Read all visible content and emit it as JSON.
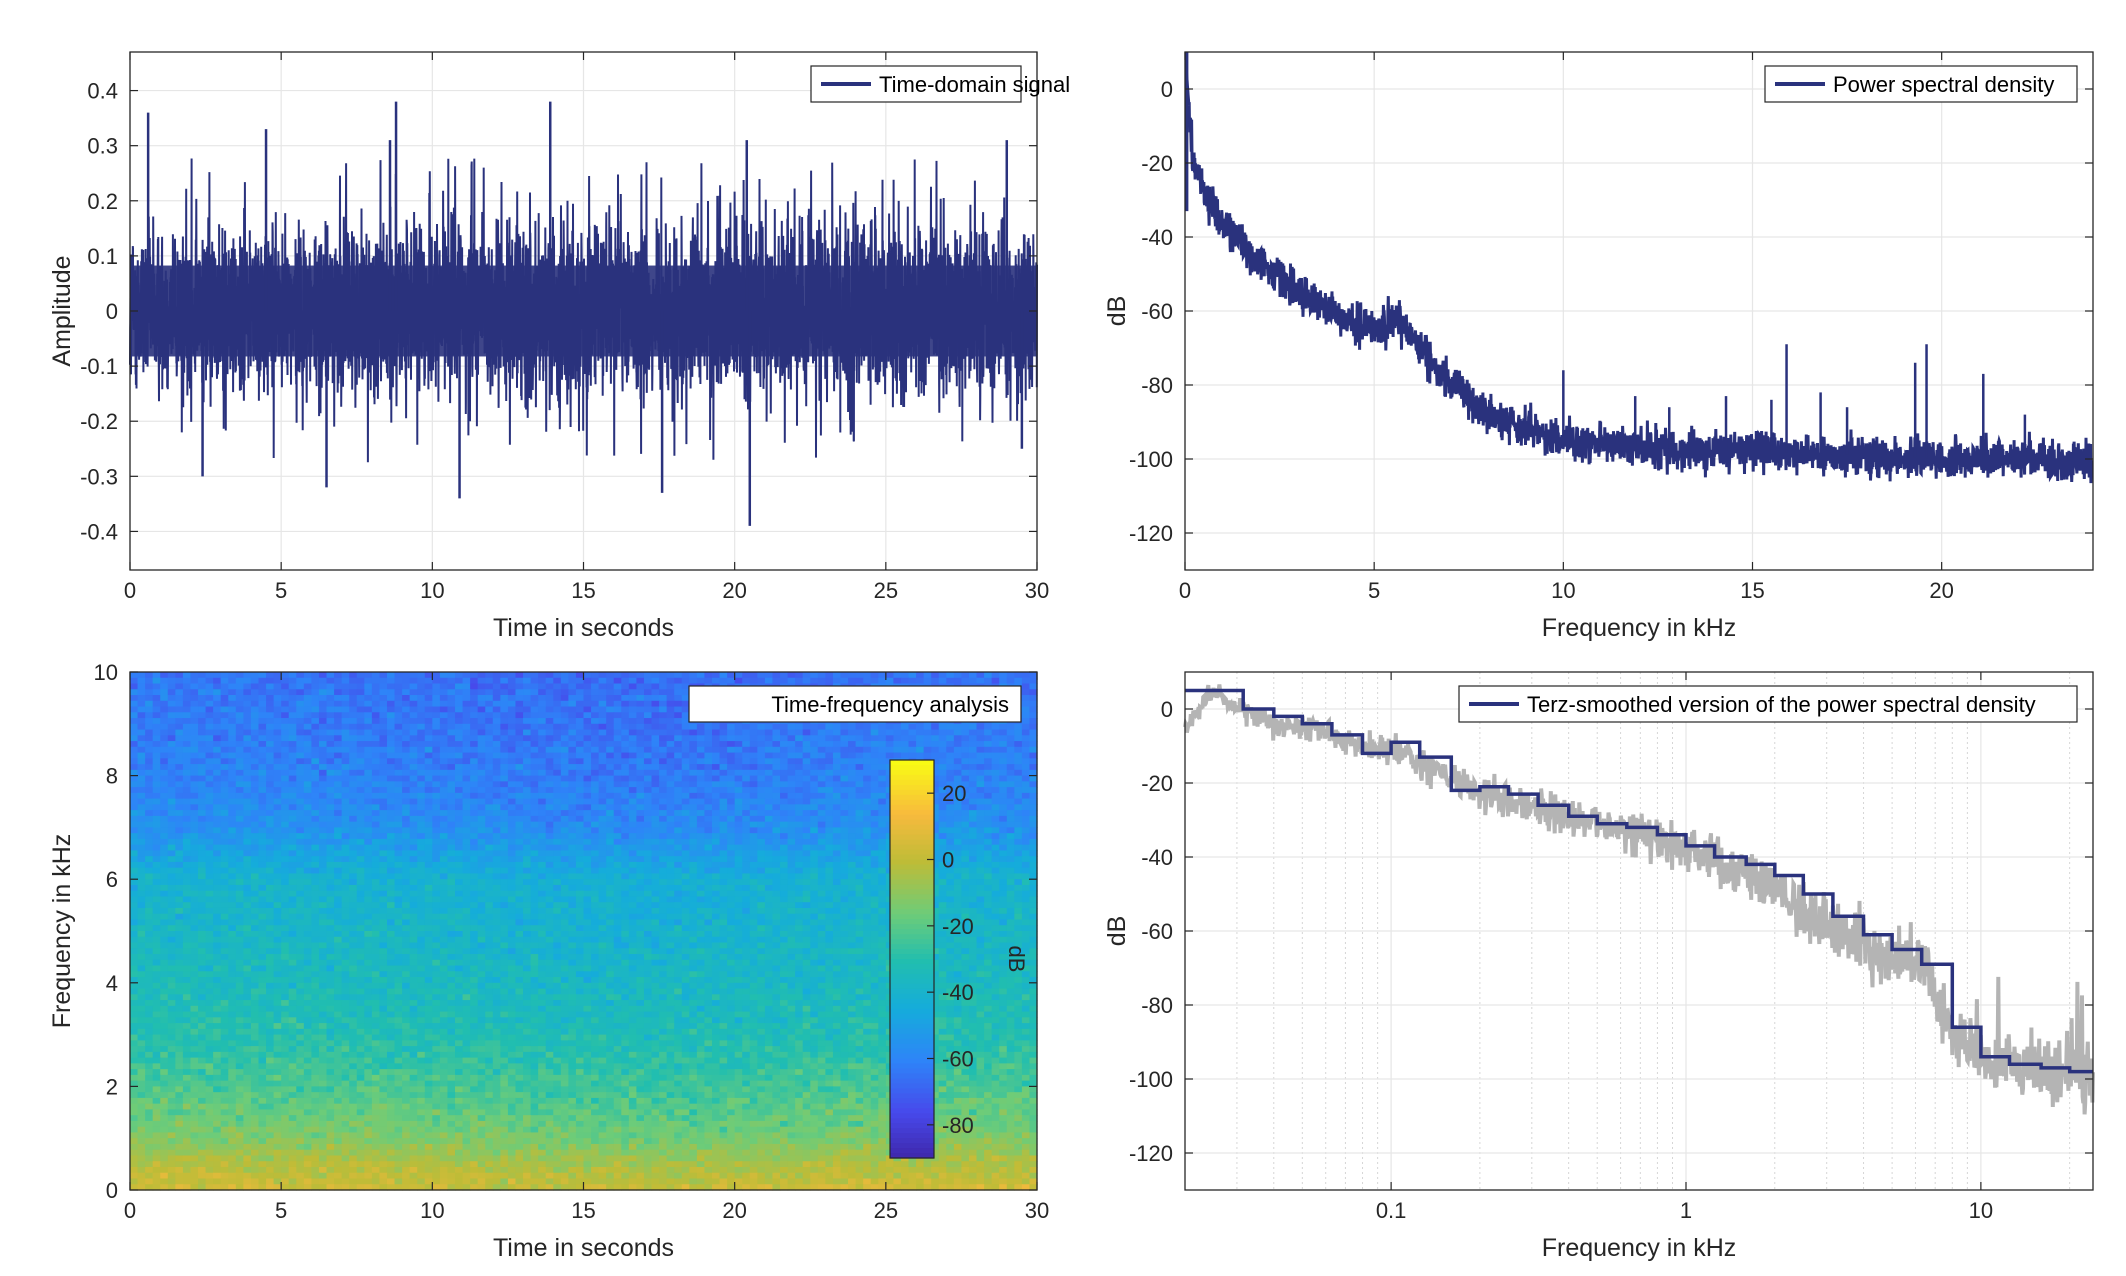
{
  "chart_data": [
    {
      "type": "line",
      "xlabel": "Time in seconds",
      "ylabel": "Amplitude",
      "xlim": [
        0,
        30
      ],
      "ylim": [
        -0.47,
        0.47
      ],
      "xticks": [
        0,
        5,
        10,
        15,
        20,
        25,
        30
      ],
      "xtick_labels": [
        "0",
        "5",
        "10",
        "15",
        "20",
        "25",
        "30"
      ],
      "yticks": [
        0.4,
        0.3,
        0.2,
        0.1,
        0,
        -0.1,
        -0.2,
        -0.3,
        -0.4
      ],
      "ytick_labels": [
        "0.4",
        "0.3",
        "0.2",
        "0.1",
        "0",
        "-0.1",
        "-0.2",
        "-0.3",
        "-0.4"
      ],
      "grid": true,
      "legend": "top-right",
      "series": [
        {
          "name": "Time-domain signal",
          "color": "#2a327d",
          "envelope_band": [
            -0.15,
            0.15
          ],
          "peaks": [
            {
              "x": 0.6,
              "y": 0.36
            },
            {
              "x": 4.5,
              "y": 0.33
            },
            {
              "x": 8.6,
              "y": 0.31
            },
            {
              "x": 8.8,
              "y": 0.38
            },
            {
              "x": 13.9,
              "y": 0.38
            },
            {
              "x": 20.4,
              "y": 0.31
            },
            {
              "x": 29.0,
              "y": 0.31
            },
            {
              "x": 2.4,
              "y": -0.3
            },
            {
              "x": 6.5,
              "y": -0.32
            },
            {
              "x": 10.9,
              "y": -0.34
            },
            {
              "x": 17.6,
              "y": -0.33
            },
            {
              "x": 20.5,
              "y": -0.39
            },
            {
              "x": 29.5,
              "y": -0.25
            }
          ]
        }
      ]
    },
    {
      "type": "line",
      "xlabel": "Frequency in kHz",
      "ylabel": "dB",
      "xlim": [
        0,
        24
      ],
      "ylim": [
        -130,
        10
      ],
      "xticks": [
        0,
        5,
        10,
        15,
        20
      ],
      "xtick_labels": [
        "0",
        "5",
        "10",
        "15",
        "20"
      ],
      "yticks": [
        0,
        -20,
        -40,
        -60,
        -80,
        -100,
        -120
      ],
      "ytick_labels": [
        "0",
        "-20",
        "-40",
        "-60",
        "-80",
        "-100",
        "-120"
      ],
      "grid": true,
      "legend": "top-right",
      "series": [
        {
          "name": "Power spectral density",
          "color": "#2a327d",
          "x": [
            0,
            0.2,
            0.5,
            1,
            2,
            3,
            4,
            5,
            5.6,
            6,
            6.5,
            7,
            8,
            9,
            10,
            12,
            15,
            18,
            20,
            22,
            24
          ],
          "y": [
            10,
            -18,
            -28,
            -36,
            -47,
            -55,
            -61,
            -65,
            -63,
            -66,
            -73,
            -80,
            -88,
            -92,
            -95,
            -97,
            -98,
            -99,
            -100,
            -100,
            -101
          ],
          "spikes": [
            {
              "x": 10,
              "y": -76
            },
            {
              "x": 11.9,
              "y": -83
            },
            {
              "x": 12.8,
              "y": -86
            },
            {
              "x": 14.3,
              "y": -83
            },
            {
              "x": 15.5,
              "y": -84
            },
            {
              "x": 15.9,
              "y": -69
            },
            {
              "x": 16.8,
              "y": -82
            },
            {
              "x": 17.5,
              "y": -86
            },
            {
              "x": 19.3,
              "y": -74
            },
            {
              "x": 19.6,
              "y": -69
            },
            {
              "x": 21.1,
              "y": -77
            },
            {
              "x": 22.2,
              "y": -88
            }
          ]
        }
      ]
    },
    {
      "type": "heatmap",
      "xlabel": "Time in seconds",
      "ylabel": "Frequency in kHz",
      "xlim": [
        0,
        30
      ],
      "ylim": [
        0,
        10
      ],
      "xticks": [
        0,
        5,
        10,
        15,
        20,
        25,
        30
      ],
      "xtick_labels": [
        "0",
        "5",
        "10",
        "15",
        "20",
        "25",
        "30"
      ],
      "yticks": [
        10,
        8,
        6,
        4,
        2,
        0
      ],
      "ytick_labels": [
        "10",
        "8",
        "6",
        "4",
        "2",
        "0"
      ],
      "legend": "top-right",
      "legend_label": "Time-frequency analysis",
      "colorbar": {
        "label": "dB",
        "range": [
          -90,
          30
        ],
        "ticks": [
          20,
          0,
          -20,
          -40,
          -60,
          -80
        ],
        "tick_labels": [
          "20",
          "0",
          "-20",
          "-40",
          "-60",
          "-80"
        ],
        "colormap": "parula"
      },
      "freq_profile_khz": [
        0,
        0.5,
        1,
        2,
        3,
        4,
        5,
        6,
        7,
        8,
        9,
        10
      ],
      "level_db": [
        5,
        -2,
        -12,
        -22,
        -30,
        -34,
        -37,
        -40,
        -55,
        -60,
        -62,
        -64
      ]
    },
    {
      "type": "line",
      "xlabel": "Frequency in kHz",
      "ylabel": "dB",
      "xscale": "log",
      "xlim": [
        0.02,
        24
      ],
      "ylim": [
        -130,
        10
      ],
      "xticks": [
        0.1,
        1,
        10
      ],
      "xtick_labels": [
        "0.1",
        "1",
        "10"
      ],
      "yticks": [
        0,
        -20,
        -40,
        -60,
        -80,
        -100,
        -120
      ],
      "ytick_labels": [
        "0",
        "-20",
        "-40",
        "-60",
        "-80",
        "-100",
        "-120"
      ],
      "grid": true,
      "legend": "top-right",
      "series": [
        {
          "name": "Terz-smoothed version of the power spectral density",
          "color": "#2a327d",
          "step": true,
          "x": [
            0.02,
            0.025,
            0.0315,
            0.04,
            0.05,
            0.063,
            0.08,
            0.1,
            0.125,
            0.16,
            0.2,
            0.25,
            0.315,
            0.4,
            0.5,
            0.63,
            0.8,
            1,
            1.25,
            1.6,
            2,
            2.5,
            3.15,
            4,
            5,
            6.3,
            8,
            10,
            12.5,
            16,
            20
          ],
          "y": [
            5,
            5,
            0,
            -2,
            -4,
            -7,
            -12,
            -9,
            -13,
            -22,
            -21,
            -23,
            -26,
            -29,
            -31,
            -32,
            -34,
            -37,
            -40,
            -42,
            -45,
            -50,
            -56,
            -61,
            -65,
            -69,
            -86,
            -94,
            -96,
            -97,
            -98
          ]
        },
        {
          "color": "#b4b4b4",
          "x": [
            0.02,
            0.025,
            0.03,
            0.04,
            0.06,
            0.08,
            0.1,
            0.15,
            0.2,
            0.3,
            0.5,
            0.8,
            1,
            1.5,
            2,
            3,
            4,
            5,
            5.8,
            6.5,
            7.5,
            9,
            12,
            16,
            24
          ],
          "y": [
            -5,
            5,
            0,
            -4,
            -6,
            -10,
            -11,
            -18,
            -22,
            -27,
            -31,
            -35,
            -38,
            -44,
            -49,
            -58,
            -63,
            -68,
            -66,
            -70,
            -83,
            -92,
            -96,
            -98,
            -100
          ]
        }
      ]
    }
  ]
}
